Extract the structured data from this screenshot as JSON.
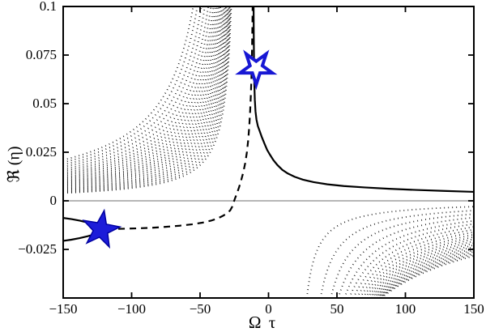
{
  "figure": {
    "background": "#ffffff",
    "curve_color": "#000000",
    "zero_line_color": "#8a8a8a",
    "marker_blue": "#1717d4"
  },
  "axes": {
    "xlabel": "Ω τ",
    "ylabel": "ℜ (η)",
    "xlim": [
      -150,
      150
    ],
    "ylim": [
      -0.05,
      0.1
    ],
    "xticks": [
      -150,
      -100,
      -50,
      0,
      50,
      100,
      150
    ],
    "xtick_labels": [
      "−150",
      "−100",
      "−50",
      "0",
      "50",
      "100",
      "150"
    ],
    "yticks": [
      -0.025,
      0,
      0.025,
      0.05,
      0.075,
      0.1
    ],
    "ytick_labels": [
      "−0.025",
      "0",
      "0.025",
      "0.05",
      "0.075",
      "0.1"
    ],
    "box": true,
    "grid": false,
    "tick_direction": "in"
  },
  "chart_data": {
    "type": "line",
    "title": "",
    "xlabel": "Ω τ",
    "ylabel": "ℜ (η)",
    "xlim": [
      -150,
      150
    ],
    "ylim": [
      -0.05,
      0.1
    ],
    "legend": "none",
    "zero_line_y": 0,
    "series": [
      {
        "name": "solid-resonance-branch",
        "style": "solid",
        "color": "#000000",
        "points": [
          [
            -10.9,
            0.1
          ],
          [
            -10.78,
            0.085
          ],
          [
            -10.6,
            0.071
          ],
          [
            -10.35,
            0.06
          ],
          [
            -10.0,
            0.052
          ],
          [
            -9.5,
            0.046
          ],
          [
            -8.8,
            0.0418
          ],
          [
            -7.8,
            0.0385
          ],
          [
            -6.5,
            0.036
          ],
          [
            -5.0,
            0.033
          ],
          [
            -3.0,
            0.0295
          ],
          [
            -1.0,
            0.0262
          ],
          [
            1.0,
            0.0238
          ],
          [
            3.5,
            0.021
          ],
          [
            6.5,
            0.0184
          ],
          [
            10,
            0.016
          ],
          [
            14,
            0.0141
          ],
          [
            19,
            0.0124
          ],
          [
            25,
            0.0109
          ],
          [
            33,
            0.0096
          ],
          [
            43,
            0.0085
          ],
          [
            55,
            0.0076
          ],
          [
            70,
            0.0069
          ],
          [
            88,
            0.0062
          ],
          [
            108,
            0.0056
          ],
          [
            128,
            0.0051
          ],
          [
            150,
            0.0046
          ]
        ]
      },
      {
        "name": "solid-left-loop",
        "style": "solid",
        "color": "#000000",
        "points": [
          [
            -150,
            -0.0088
          ],
          [
            -144,
            -0.0094
          ],
          [
            -138,
            -0.0102
          ],
          [
            -132,
            -0.0112
          ],
          [
            -127,
            -0.0122
          ],
          [
            -123,
            -0.0132
          ],
          [
            -120,
            -0.014
          ],
          [
            -118.3,
            -0.0147
          ],
          [
            -120,
            -0.0154
          ],
          [
            -123,
            -0.0162
          ],
          [
            -127,
            -0.0172
          ],
          [
            -132,
            -0.0182
          ],
          [
            -138,
            -0.0192
          ],
          [
            -144,
            -0.02
          ],
          [
            -150,
            -0.0206
          ]
        ]
      },
      {
        "name": "dashed-branch",
        "style": "dashed",
        "color": "#000000",
        "points": [
          [
            -118,
            -0.0147
          ],
          [
            -108,
            -0.0144
          ],
          [
            -97,
            -0.0142
          ],
          [
            -86,
            -0.0139
          ],
          [
            -75,
            -0.0134
          ],
          [
            -65,
            -0.0128
          ],
          [
            -56,
            -0.0121
          ],
          [
            -48,
            -0.0112
          ],
          [
            -42,
            -0.0102
          ],
          [
            -37,
            -0.009
          ],
          [
            -33,
            -0.0076
          ],
          [
            -30,
            -0.0062
          ],
          [
            -28,
            -0.0049
          ],
          [
            -26.5,
            -0.003
          ],
          [
            -25.5,
            -0.0008
          ],
          [
            -24.5,
            0.0012
          ],
          [
            -23,
            0.004
          ],
          [
            -21.5,
            0.007
          ],
          [
            -20,
            0.0105
          ],
          [
            -18.5,
            0.0145
          ],
          [
            -17,
            0.0195
          ],
          [
            -15.8,
            0.025
          ],
          [
            -14.8,
            0.0315
          ],
          [
            -14.0,
            0.039
          ],
          [
            -13.4,
            0.0465
          ],
          [
            -12.9,
            0.0545
          ],
          [
            -12.5,
            0.063
          ],
          [
            -12.2,
            0.072
          ],
          [
            -11.95,
            0.0815
          ],
          [
            -11.75,
            0.091
          ],
          [
            -11.6,
            0.1
          ]
        ]
      }
    ],
    "dotted_family_upper_left": {
      "style": "dotted",
      "color": "#000000",
      "description": "hyperbolic branches, each given as [x_at_top_exit_y0.1, y_at_left_edge_xm150]",
      "curves": [
        [
          -55,
          0.021
        ],
        [
          -52,
          0.0198
        ],
        [
          -49,
          0.0186
        ],
        [
          -46.5,
          0.0175
        ],
        [
          -44,
          0.0164
        ],
        [
          -42,
          0.0154
        ],
        [
          -40.2,
          0.0145
        ],
        [
          -38.8,
          0.0137
        ],
        [
          -37.5,
          0.0129
        ],
        [
          -36.3,
          0.0121
        ],
        [
          -35.2,
          0.0114
        ],
        [
          -34.2,
          0.0107
        ],
        [
          -33.3,
          0.01
        ],
        [
          -32.5,
          0.0094
        ],
        [
          -31.8,
          0.0088
        ],
        [
          -31.1,
          0.0082
        ],
        [
          -30.5,
          0.0076
        ],
        [
          -29.9,
          0.007
        ],
        [
          -29.4,
          0.0064
        ],
        [
          -28.9,
          0.0059
        ],
        [
          -28.4,
          0.0054
        ],
        [
          -28.0,
          0.0049
        ],
        [
          -27.6,
          0.0044
        ],
        [
          -27.2,
          0.004
        ]
      ]
    },
    "dotted_family_lower_right": {
      "style": "dotted",
      "color": "#000000",
      "description": "hyperbolic branches, each given as [x_at_bottom_exit_ym0.05, y_at_right_edge_x150]",
      "curves": [
        [
          28,
          -0.003
        ],
        [
          38,
          -0.005
        ],
        [
          45.5,
          -0.0068
        ],
        [
          51,
          -0.0086
        ],
        [
          55.5,
          -0.0103
        ],
        [
          59,
          -0.0119
        ],
        [
          62,
          -0.0134
        ],
        [
          64.6,
          -0.0148
        ],
        [
          66.9,
          -0.0161
        ],
        [
          68.9,
          -0.0174
        ],
        [
          70.7,
          -0.0186
        ],
        [
          72.3,
          -0.0197
        ],
        [
          73.8,
          -0.0208
        ],
        [
          75.1,
          -0.0218
        ],
        [
          76.3,
          -0.0228
        ],
        [
          77.4,
          -0.0237
        ],
        [
          78.4,
          -0.0246
        ],
        [
          79.3,
          -0.0254
        ],
        [
          80.1,
          -0.0262
        ],
        [
          80.9,
          -0.027
        ],
        [
          81.6,
          -0.0277
        ],
        [
          82.3,
          -0.0284
        ]
      ]
    },
    "markers": [
      {
        "name": "upper-open-star",
        "shape": "star5",
        "x": -9.0,
        "y": 0.0685,
        "r_outer": 21,
        "r_inner": 8,
        "rotation": 54,
        "fill": "#ffffff",
        "stroke": "#1717d4",
        "stroke_width": 4
      },
      {
        "name": "lower-filled-star",
        "shape": "star5",
        "x": -122.5,
        "y": -0.0148,
        "r_outer": 24,
        "r_inner": 9.5,
        "rotation": 8,
        "fill": "#1c1cd9",
        "stroke": "#0000a0",
        "stroke_width": 1.5
      }
    ]
  }
}
